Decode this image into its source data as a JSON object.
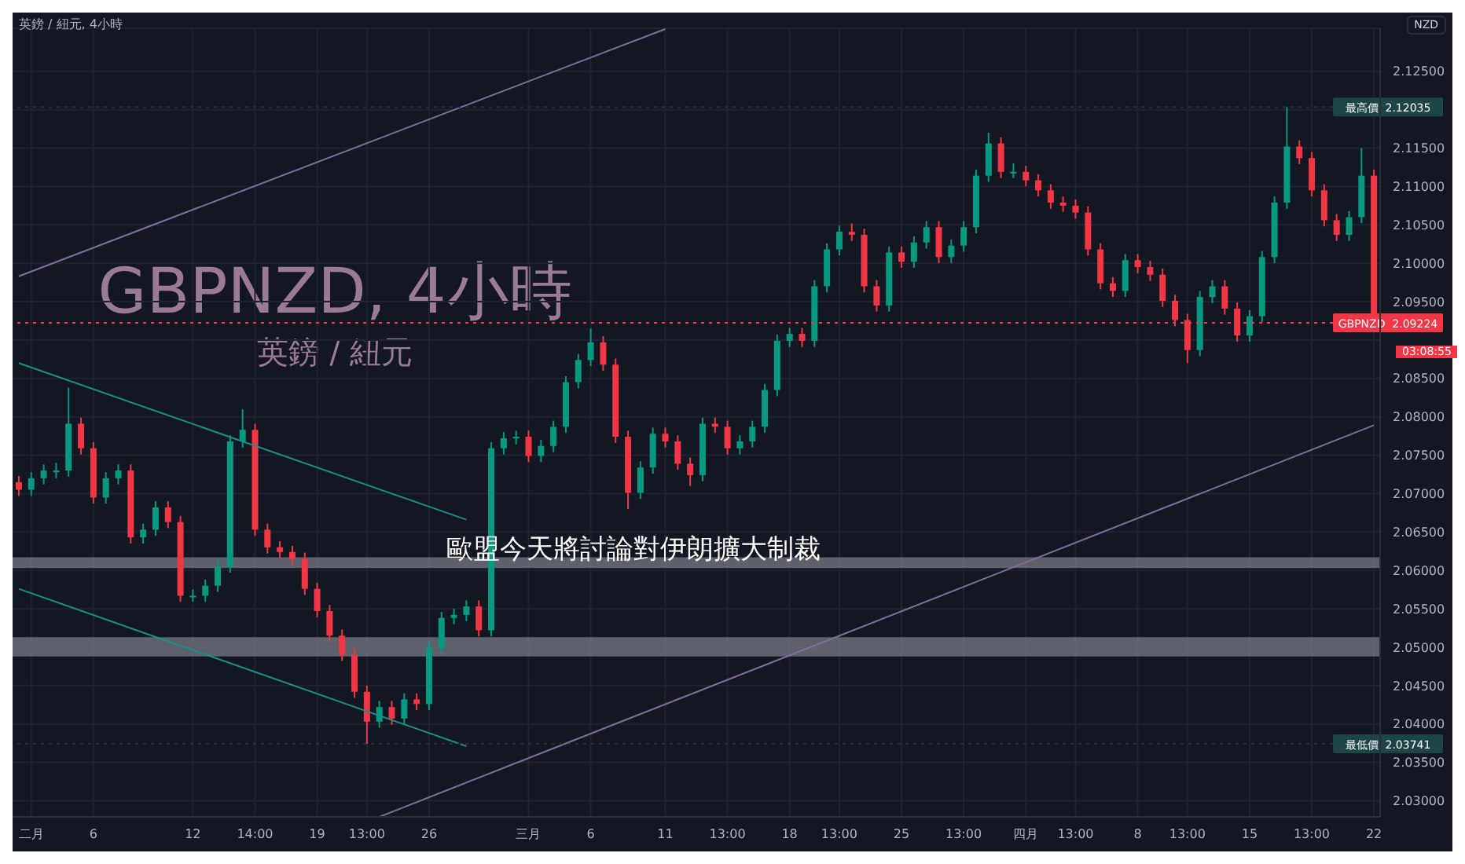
{
  "chart_data": {
    "type": "candlestick",
    "title": "GBPNZD, 4小時",
    "subtitle": "英鎊 / 紐元",
    "ylabel": "NZD",
    "annotations": [
      "英鎊 / 紐元, 4小時",
      "歐盟今天將討論對伊朗擴大制裁",
      "03:08:55"
    ],
    "categories": [
      null,
      "二月",
      null,
      null,
      null,
      null,
      "6",
      null,
      null,
      null,
      null,
      null,
      null,
      null,
      "12",
      null,
      null,
      null,
      null,
      "14:00",
      null,
      null,
      null,
      null,
      "19",
      null,
      null,
      null,
      "13:00",
      null,
      null,
      null,
      null,
      "26",
      null,
      null,
      null,
      null,
      null,
      null,
      null,
      "三月",
      null,
      null,
      null,
      null,
      "6",
      null,
      null,
      null,
      null,
      null,
      "11",
      null,
      null,
      null,
      null,
      "13:00",
      null,
      null,
      null,
      null,
      "18",
      null,
      null,
      null,
      "13:00",
      null,
      null,
      null,
      null,
      "25",
      null,
      null,
      null,
      null,
      "13:00",
      null,
      null,
      null,
      null,
      "四月",
      null,
      null,
      null,
      "13:00",
      null,
      null,
      null,
      null,
      "8",
      null,
      null,
      null,
      "13:00",
      null,
      null,
      null,
      null,
      "15",
      null,
      null,
      null,
      null,
      "13:00",
      null,
      null,
      null,
      null,
      "22"
    ],
    "colors": [
      "#f23645",
      "#089981",
      "#089981",
      "#089981",
      "#089981",
      "#f23645",
      "#f23645",
      "#089981",
      "#089981",
      "#f23645",
      "#089981",
      "#089981",
      "#f23645",
      "#f23645",
      "#089981",
      "#089981",
      "#089981",
      "#089981",
      "#089981",
      "#f23645",
      "#f23645",
      "#f23645",
      "#f23645",
      "#f23645",
      "#f23645",
      "#f23645",
      "#f23645",
      "#f23645",
      "#f23645",
      "#089981",
      "#f23645",
      "#089981",
      "#f23645",
      "#089981",
      "#089981",
      "#089981",
      "#089981",
      "#f23645",
      "#089981",
      "#089981",
      "#089981",
      "#f23645",
      "#089981",
      "#089981",
      "#089981",
      "#089981",
      "#089981",
      "#f23645",
      "#f23645",
      "#f23645",
      "#089981",
      "#089981",
      "#f23645",
      "#f23645",
      "#f23645",
      "#089981",
      "#f23645",
      "#f23645",
      "#089981",
      "#089981",
      "#089981",
      "#089981",
      "#089981",
      "#f23645",
      "#089981",
      "#089981",
      "#089981",
      "#f23645",
      "#f23645",
      "#f23645",
      "#089981",
      "#f23645",
      "#089981",
      "#089981",
      "#f23645",
      "#089981",
      "#089981",
      "#089981",
      "#089981",
      "#f23645",
      "#089981",
      "#f23645",
      "#f23645",
      "#f23645",
      "#f23645",
      "#f23645",
      "#f23645",
      "#f23645",
      "#f23645",
      "#089981",
      "#f23645",
      "#f23645",
      "#f23645",
      "#f23645",
      "#f23645",
      "#089981",
      "#089981",
      "#f23645",
      "#f23645",
      "#089981",
      "#089981",
      "#089981",
      "#089981",
      "#f23645",
      "#f23645",
      "#f23645",
      "#f23645",
      "#089981",
      "#089981",
      "#f23645"
    ],
    "ohlc": [
      [
        2.0715,
        2.0723,
        2.0697,
        2.0705
      ],
      [
        2.0705,
        2.0728,
        2.0697,
        2.072
      ],
      [
        2.072,
        2.0738,
        2.0712,
        2.073
      ],
      [
        2.073,
        2.074,
        2.072,
        2.073
      ],
      [
        2.073,
        2.0838,
        2.0722,
        2.0791
      ],
      [
        2.0791,
        2.0799,
        2.0751,
        2.0759
      ],
      [
        2.0759,
        2.0767,
        2.0687,
        2.0695
      ],
      [
        2.0695,
        2.0728,
        2.0687,
        2.072
      ],
      [
        2.072,
        2.0738,
        2.0712,
        2.073
      ],
      [
        2.073,
        2.0738,
        2.0635,
        2.0643
      ],
      [
        2.0643,
        2.0661,
        2.0635,
        2.0653
      ],
      [
        2.0653,
        2.069,
        2.0645,
        2.0682
      ],
      [
        2.0682,
        2.069,
        2.0655,
        2.0663
      ],
      [
        2.0663,
        2.0671,
        2.0559,
        2.0567
      ],
      [
        2.0567,
        2.0575,
        2.0559,
        2.0567
      ],
      [
        2.0567,
        2.0588,
        2.0559,
        2.058
      ],
      [
        2.058,
        2.0613,
        2.0572,
        2.0605
      ],
      [
        2.0605,
        2.0776,
        2.0597,
        2.0768
      ],
      [
        2.0768,
        2.081,
        2.076,
        2.0783
      ],
      [
        2.0783,
        2.0791,
        2.0645,
        2.0653
      ],
      [
        2.0653,
        2.0661,
        2.0622,
        2.063
      ],
      [
        2.063,
        2.0638,
        2.0616,
        2.0624
      ],
      [
        2.0624,
        2.0632,
        2.0607,
        2.0615
      ],
      [
        2.0615,
        2.0623,
        2.0568,
        2.0576
      ],
      [
        2.0576,
        2.0584,
        2.0539,
        2.0547
      ],
      [
        2.0547,
        2.0555,
        2.0507,
        2.0515
      ],
      [
        2.0515,
        2.0523,
        2.0482,
        2.049
      ],
      [
        2.049,
        2.0498,
        2.0434,
        2.0442
      ],
      [
        2.0442,
        2.045,
        2.03741,
        2.0403
      ],
      [
        2.0403,
        2.043,
        2.0395,
        2.0422
      ],
      [
        2.0422,
        2.043,
        2.0399,
        2.0407
      ],
      [
        2.0407,
        2.044,
        2.0399,
        2.0432
      ],
      [
        2.0432,
        2.044,
        2.0418,
        2.0426
      ],
      [
        2.0426,
        2.0507,
        2.0418,
        2.0499
      ],
      [
        2.0499,
        2.0546,
        2.0491,
        2.0538
      ],
      [
        2.0538,
        2.055,
        2.053,
        2.0542
      ],
      [
        2.0542,
        2.0561,
        2.0534,
        2.0553
      ],
      [
        2.0553,
        2.0561,
        2.0514,
        2.0522
      ],
      [
        2.0522,
        2.0767,
        2.0514,
        2.0759
      ],
      [
        2.0759,
        2.078,
        2.0751,
        2.0772
      ],
      [
        2.0772,
        2.0782,
        2.0764,
        2.0774
      ],
      [
        2.0774,
        2.0782,
        2.0741,
        2.0749
      ],
      [
        2.0749,
        2.077,
        2.0741,
        2.0762
      ],
      [
        2.0762,
        2.0795,
        2.0754,
        2.0787
      ],
      [
        2.0787,
        2.0853,
        2.0779,
        2.0845
      ],
      [
        2.0845,
        2.0882,
        2.0837,
        2.0874
      ],
      [
        2.0874,
        2.0915,
        2.0866,
        2.0897
      ],
      [
        2.0897,
        2.0905,
        2.086,
        2.0868
      ],
      [
        2.0868,
        2.0876,
        2.0766,
        2.0774
      ],
      [
        2.0774,
        2.0782,
        2.068,
        2.0701
      ],
      [
        2.0701,
        2.0742,
        2.0693,
        2.0734
      ],
      [
        2.0734,
        2.0786,
        2.0726,
        2.0778
      ],
      [
        2.0778,
        2.0786,
        2.076,
        2.0768
      ],
      [
        2.0768,
        2.0776,
        2.0731,
        2.0739
      ],
      [
        2.0739,
        2.0747,
        2.071,
        2.0724
      ],
      [
        2.0724,
        2.0799,
        2.0716,
        2.0791
      ],
      [
        2.0791,
        2.0799,
        2.0779,
        2.0787
      ],
      [
        2.0787,
        2.0795,
        2.0751,
        2.0759
      ],
      [
        2.0759,
        2.0776,
        2.0751,
        2.0768
      ],
      [
        2.0768,
        2.0795,
        2.076,
        2.0787
      ],
      [
        2.0787,
        2.0843,
        2.0779,
        2.0835
      ],
      [
        2.0835,
        2.0907,
        2.0827,
        2.0899
      ],
      [
        2.0899,
        2.0916,
        2.0891,
        2.0908
      ],
      [
        2.0908,
        2.0916,
        2.0891,
        2.0899
      ],
      [
        2.0899,
        2.0978,
        2.0891,
        2.097
      ],
      [
        2.097,
        2.1026,
        2.0962,
        2.1018
      ],
      [
        2.1018,
        2.1049,
        2.101,
        2.1041
      ],
      [
        2.1041,
        2.1052,
        2.1029,
        2.1037
      ],
      [
        2.1037,
        2.1045,
        2.0962,
        2.097
      ],
      [
        2.097,
        2.0978,
        2.0937,
        2.0945
      ],
      [
        2.0945,
        2.1022,
        2.0937,
        2.1014
      ],
      [
        2.1014,
        2.1022,
        2.0994,
        2.1002
      ],
      [
        2.1002,
        2.1035,
        2.0994,
        2.1027
      ],
      [
        2.1027,
        2.1055,
        2.1019,
        2.1047
      ],
      [
        2.1047,
        2.1055,
        2.1,
        2.1008
      ],
      [
        2.1008,
        2.1031,
        2.1,
        2.1023
      ],
      [
        2.1023,
        2.1055,
        2.1015,
        2.1047
      ],
      [
        2.1047,
        2.1122,
        2.1039,
        2.1114
      ],
      [
        2.1114,
        2.117,
        2.1106,
        2.1156
      ],
      [
        2.1156,
        2.1164,
        2.1111,
        2.1119
      ],
      [
        2.1119,
        2.113,
        2.1111,
        2.1119
      ],
      [
        2.1119,
        2.1127,
        2.11,
        2.1108
      ],
      [
        2.1108,
        2.1116,
        2.1087,
        2.1095
      ],
      [
        2.1095,
        2.1103,
        2.1071,
        2.1079
      ],
      [
        2.1079,
        2.1087,
        2.1067,
        2.1075
      ],
      [
        2.1075,
        2.1083,
        2.1058,
        2.1066
      ],
      [
        2.1066,
        2.1074,
        2.101,
        2.1018
      ],
      [
        2.1018,
        2.1026,
        2.0966,
        2.0974
      ],
      [
        2.0974,
        2.0982,
        2.0956,
        2.0964
      ],
      [
        2.0964,
        2.1012,
        2.0956,
        2.1004
      ],
      [
        2.1004,
        2.1012,
        2.0987,
        2.0995
      ],
      [
        2.0995,
        2.1003,
        2.0977,
        2.0985
      ],
      [
        2.0985,
        2.0993,
        2.0943,
        2.0951
      ],
      [
        2.0951,
        2.0959,
        2.0918,
        2.0926
      ],
      [
        2.0926,
        2.0934,
        2.087,
        2.0887
      ],
      [
        2.0887,
        2.0964,
        2.0879,
        2.0956
      ],
      [
        2.0956,
        2.0978,
        2.0948,
        2.097
      ],
      [
        2.097,
        2.0978,
        2.0933,
        2.0941
      ],
      [
        2.0941,
        2.0949,
        2.0898,
        2.0906
      ],
      [
        2.0906,
        2.0939,
        2.0898,
        2.0931
      ],
      [
        2.0931,
        2.1016,
        2.0923,
        2.1008
      ],
      [
        2.1008,
        2.1087,
        2.1,
        2.1079
      ],
      [
        2.1079,
        2.12035,
        2.1071,
        2.1152
      ],
      [
        2.1152,
        2.116,
        2.1129,
        2.1137
      ],
      [
        2.1137,
        2.1145,
        2.1087,
        2.1095
      ],
      [
        2.1095,
        2.1103,
        2.1048,
        2.1056
      ],
      [
        2.1056,
        2.1064,
        2.1029,
        2.1037
      ],
      [
        2.1037,
        2.1068,
        2.1029,
        2.106
      ],
      [
        2.106,
        2.115,
        2.1052,
        2.1114
      ],
      [
        2.1114,
        2.1122,
        2.0914,
        2.09224
      ]
    ],
    "series": [
      {
        "type": "line",
        "color": "#1c8f85",
        "values": [
          2.087,
          null,
          null,
          null,
          null,
          null,
          null,
          null,
          null,
          null,
          null,
          null,
          null,
          null,
          null,
          null,
          null,
          null,
          null,
          null,
          null,
          null,
          null,
          null,
          null,
          null,
          null,
          null,
          null,
          null,
          null,
          null,
          null,
          null,
          null,
          null,
          2.0666,
          null,
          null,
          null,
          null,
          null,
          null,
          null,
          null,
          null,
          null,
          null,
          null,
          null,
          null,
          null,
          null,
          null,
          null,
          null,
          null,
          null,
          null,
          null,
          null,
          null,
          null,
          null,
          null,
          null,
          null,
          null,
          null,
          null,
          null,
          null,
          null,
          null,
          null,
          null,
          null,
          null,
          null,
          null,
          null,
          null,
          null,
          null,
          null,
          null,
          null,
          null,
          null,
          null,
          null,
          null,
          null,
          null,
          null,
          null,
          null,
          null,
          null,
          null,
          null,
          null,
          null,
          null,
          null,
          null,
          null,
          null,
          null,
          null
        ]
      },
      {
        "type": "line",
        "color": "#1c8f85",
        "values": [
          2.0576,
          null,
          null,
          null,
          null,
          null,
          null,
          null,
          null,
          null,
          null,
          null,
          null,
          null,
          null,
          null,
          null,
          null,
          null,
          null,
          null,
          null,
          null,
          null,
          null,
          null,
          null,
          null,
          null,
          null,
          null,
          null,
          null,
          null,
          null,
          null,
          2.0371,
          null,
          null,
          null,
          null,
          null,
          null,
          null,
          null,
          null,
          null,
          null,
          null,
          null,
          null,
          null,
          null,
          null,
          null,
          null,
          null,
          null,
          null,
          null,
          null,
          null,
          null,
          null,
          null,
          null,
          null,
          null,
          null,
          null,
          null,
          null,
          null,
          null,
          null,
          null,
          null,
          null,
          null,
          null,
          null,
          null,
          null,
          null,
          null,
          null,
          null,
          null,
          null,
          null,
          null,
          null,
          null,
          null,
          null,
          null,
          null,
          null,
          null,
          null,
          null,
          null,
          null,
          null,
          null,
          null,
          null,
          null,
          null,
          null
        ]
      },
      {
        "type": "line",
        "color": "#7e6f9e",
        "values": [
          2.0983,
          null,
          null,
          null,
          null,
          null,
          null,
          null,
          null,
          null,
          null,
          null,
          null,
          null,
          null,
          null,
          null,
          null,
          null,
          null,
          null,
          null,
          null,
          null,
          null,
          null,
          null,
          null,
          null,
          null,
          null,
          null,
          null,
          null,
          null,
          null,
          null,
          null,
          null,
          null,
          null,
          null,
          null,
          null,
          null,
          null,
          null,
          null,
          null,
          null,
          null,
          null,
          2.1305,
          null,
          null,
          null,
          null,
          null,
          null,
          null,
          null,
          null,
          null,
          null,
          null,
          null,
          null,
          null,
          null,
          null,
          null,
          null,
          null,
          null,
          null,
          null,
          null,
          null,
          null,
          null,
          null,
          null,
          null,
          null,
          null,
          null,
          null,
          null,
          null,
          null,
          null,
          null,
          null,
          null,
          null,
          null,
          null,
          null,
          null,
          null,
          null,
          null,
          null,
          null,
          null,
          null,
          null,
          null,
          null,
          null
        ]
      },
      {
        "type": "line",
        "color": "#7e6f9e",
        "values": [
          null,
          null,
          null,
          null,
          null,
          null,
          null,
          null,
          null,
          null,
          null,
          null,
          null,
          null,
          null,
          null,
          null,
          null,
          null,
          null,
          null,
          null,
          null,
          null,
          null,
          null,
          null,
          null,
          null,
          2.0279,
          null,
          null,
          null,
          null,
          null,
          null,
          null,
          null,
          null,
          null,
          null,
          null,
          null,
          null,
          null,
          null,
          null,
          null,
          null,
          null,
          null,
          null,
          null,
          null,
          null,
          null,
          null,
          null,
          null,
          null,
          null,
          null,
          null,
          null,
          null,
          null,
          null,
          null,
          null,
          null,
          null,
          null,
          null,
          null,
          null,
          null,
          null,
          null,
          null,
          null,
          null,
          null,
          null,
          null,
          null,
          null,
          null,
          null,
          null,
          null,
          null,
          null,
          null,
          null,
          null,
          null,
          null,
          null,
          null,
          null,
          null,
          null,
          null,
          null,
          null,
          null,
          null,
          null,
          null,
          2.0789
        ]
      }
    ],
    "bands": [
      {
        "axis": "y",
        "from": 2.0603,
        "to": 2.0617,
        "color": "#787b86"
      },
      {
        "axis": "y",
        "from": 2.0488,
        "to": 2.0513,
        "color": "#787b86"
      }
    ],
    "ref_lines": [
      {
        "axis": "y",
        "value": 2.09224,
        "label": "GBPNZD  2.09224",
        "color": "#f23645",
        "line_style": "dotted"
      },
      {
        "axis": "y",
        "value": 2.12035,
        "label": "最高價  2.12035",
        "color": "#2a2e39",
        "line_style": "dotted"
      },
      {
        "axis": "y",
        "value": 2.03741,
        "label": "最低價  2.03741",
        "color": "#2a2e39",
        "line_style": "dotted"
      }
    ],
    "ylim": [
      2.0279,
      2.1306
    ],
    "yticks": [
      {
        "value": 2.03,
        "label": "2.03000"
      },
      {
        "value": 2.035,
        "label": "2.03500"
      },
      {
        "value": 2.04,
        "label": "2.04000"
      },
      {
        "value": 2.045,
        "label": "2.04500"
      },
      {
        "value": 2.05,
        "label": "2.05000"
      },
      {
        "value": 2.055,
        "label": "2.05500"
      },
      {
        "value": 2.06,
        "label": "2.06000"
      },
      {
        "value": 2.065,
        "label": "2.06500"
      },
      {
        "value": 2.07,
        "label": "2.07000"
      },
      {
        "value": 2.075,
        "label": "2.07500"
      },
      {
        "value": 2.08,
        "label": "2.08000"
      },
      {
        "value": 2.085,
        "label": "2.08500"
      },
      {
        "value": 2.09,
        "label": null
      },
      {
        "value": 2.095,
        "label": "2.09500"
      },
      {
        "value": 2.1,
        "label": "2.10000"
      },
      {
        "value": 2.105,
        "label": "2.10500"
      },
      {
        "value": 2.11,
        "label": "2.11000"
      },
      {
        "value": 2.115,
        "label": "2.11500"
      },
      {
        "value": 2.12,
        "label": null
      },
      {
        "value": 2.125,
        "label": "2.12500"
      }
    ],
    "grid": true,
    "legend": false
  }
}
